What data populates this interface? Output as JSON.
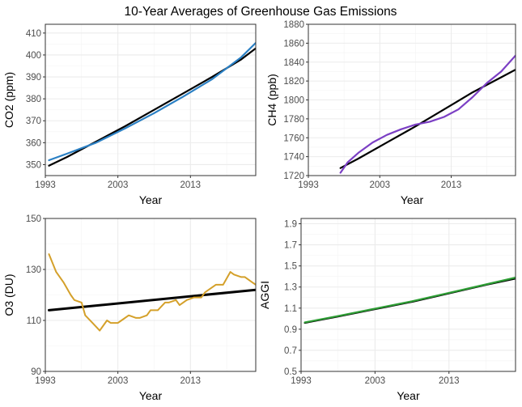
{
  "title": "10-Year Averages of Greenhouse Gas Emissions",
  "chart_data": [
    {
      "type": "line",
      "xlabel": "Year",
      "ylabel": "CO2 (ppm)",
      "xlim": [
        1993,
        2022
      ],
      "ylim": [
        345,
        414
      ],
      "xticks": [
        1993,
        2003,
        2013
      ],
      "xtick_labels": [
        "1993",
        "2003",
        "2013"
      ],
      "yticks": [
        350,
        360,
        370,
        380,
        390,
        400,
        410
      ],
      "ytick_labels": [
        "350",
        "360",
        "370",
        "380",
        "390",
        "400",
        "410"
      ],
      "grid": true,
      "series": [
        {
          "color": "#000000",
          "width": 2.2,
          "x": [
            1993.5,
            1996,
            2000,
            2004,
            2008,
            2012,
            2016,
            2020,
            2022
          ],
          "y": [
            349.5,
            353.5,
            360.5,
            367.5,
            375,
            382.5,
            390,
            398,
            403
          ]
        },
        {
          "color": "#2B80C4",
          "width": 2.2,
          "x": [
            1993.5,
            1996,
            2000,
            2004,
            2008,
            2012,
            2016,
            2020,
            2022
          ],
          "y": [
            352,
            355,
            360,
            366.5,
            373.5,
            381,
            389,
            399,
            405.5
          ]
        }
      ]
    },
    {
      "type": "line",
      "xlabel": "Year",
      "ylabel": "CH4 (ppb)",
      "xlim": [
        1993,
        2022
      ],
      "ylim": [
        1720,
        1880
      ],
      "xticks": [
        1993,
        2003,
        2013
      ],
      "xtick_labels": [
        "1993",
        "2003",
        "2013"
      ],
      "yticks": [
        1720,
        1740,
        1760,
        1780,
        1800,
        1820,
        1840,
        1860,
        1880
      ],
      "ytick_labels": [
        "1720",
        "1740",
        "1760",
        "1780",
        "1800",
        "1820",
        "1840",
        "1860",
        "1880"
      ],
      "grid": true,
      "series": [
        {
          "color": "#000000",
          "width": 2.2,
          "x": [
            1997.5,
            2000,
            2004,
            2008,
            2012,
            2016,
            2020,
            2022
          ],
          "y": [
            1728,
            1738,
            1755,
            1772,
            1790,
            1808,
            1824,
            1832
          ]
        },
        {
          "color": "#7B3FC4",
          "width": 2.2,
          "x": [
            1997.5,
            1998.5,
            2000,
            2002,
            2004,
            2006,
            2008,
            2010,
            2012,
            2014,
            2016,
            2018,
            2020,
            2022
          ],
          "y": [
            1723,
            1734,
            1744,
            1755,
            1763,
            1769,
            1774,
            1777,
            1782,
            1790,
            1803,
            1818,
            1830,
            1847
          ]
        }
      ]
    },
    {
      "type": "line",
      "xlabel": "Year",
      "ylabel": "O3 (DU)",
      "xlim": [
        1993,
        2022
      ],
      "ylim": [
        90,
        150
      ],
      "xticks": [
        1993,
        2003,
        2013
      ],
      "xtick_labels": [
        "1993",
        "2003",
        "2013"
      ],
      "yticks": [
        90,
        110,
        130,
        150
      ],
      "ytick_labels": [
        "90",
        "110",
        "130",
        "150"
      ],
      "grid": true,
      "series": [
        {
          "color": "#000000",
          "width": 3.0,
          "x": [
            1993.5,
            2022
          ],
          "y": [
            114,
            122
          ]
        },
        {
          "color": "#D4A02A",
          "width": 2.0,
          "x": [
            1993.5,
            1994.5,
            1995.5,
            1996.5,
            1997,
            1998,
            1998.5,
            1999.5,
            2000.5,
            2001.5,
            2002,
            2003,
            2003.5,
            2004.5,
            2005.5,
            2006,
            2007,
            2007.5,
            2008.5,
            2009.5,
            2010,
            2011,
            2011.5,
            2012.5,
            2013.5,
            2014.5,
            2015,
            2016,
            2016.5,
            2017.5,
            2018.5,
            2019,
            2020,
            2020.5,
            2021.5,
            2022
          ],
          "y": [
            136,
            129,
            125,
            120,
            118,
            117,
            112,
            109,
            106,
            110,
            109,
            109,
            110,
            112,
            111,
            111,
            112,
            114,
            114,
            117,
            117,
            118,
            116,
            118,
            119,
            119,
            121,
            123,
            124,
            124,
            129,
            128,
            127,
            127,
            125,
            124
          ]
        }
      ]
    },
    {
      "type": "line",
      "xlabel": "Year",
      "ylabel": "AGGI",
      "xlim": [
        1993,
        2022
      ],
      "ylim": [
        0.5,
        1.95
      ],
      "xticks": [
        1993,
        2003,
        2013
      ],
      "xtick_labels": [
        "1993",
        "2003",
        "2013"
      ],
      "yticks": [
        0.5,
        0.7,
        0.9,
        1.1,
        1.3,
        1.5,
        1.7,
        1.9
      ],
      "ytick_labels": [
        "0.5",
        "0.7",
        "0.9",
        "1.1",
        "1.3",
        "1.5",
        "1.7",
        "1.9"
      ],
      "grid": true,
      "series": [
        {
          "color": "#000000",
          "width": 2.2,
          "x": [
            1993.5,
            1998,
            2003,
            2008,
            2013,
            2018,
            2022
          ],
          "y": [
            0.96,
            1.02,
            1.09,
            1.16,
            1.24,
            1.32,
            1.38
          ]
        },
        {
          "color": "#2E9E35",
          "width": 2.2,
          "x": [
            1993.5,
            1998,
            2003,
            2008,
            2013,
            2018,
            2022
          ],
          "y": [
            0.965,
            1.025,
            1.095,
            1.165,
            1.245,
            1.325,
            1.39
          ]
        }
      ]
    }
  ]
}
